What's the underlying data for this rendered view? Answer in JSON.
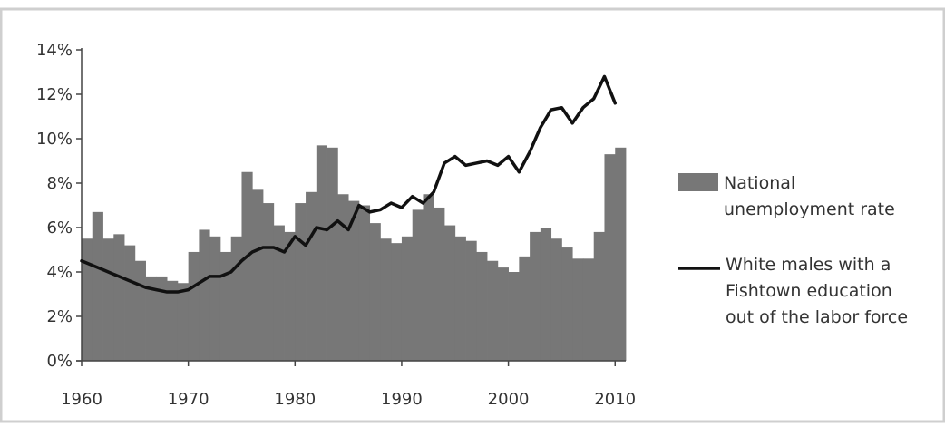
{
  "chart_data": {
    "type": "bar",
    "title": "",
    "xlabel": "",
    "ylabel": "",
    "ylim": [
      0,
      14
    ],
    "xlim": [
      1960,
      2011
    ],
    "grid": false,
    "legend_position": "right",
    "y_ticks": [
      "0%",
      "2%",
      "4%",
      "6%",
      "8%",
      "10%",
      "12%",
      "14%"
    ],
    "x_ticks": [
      "1960",
      "1970",
      "1980",
      "1990",
      "2000",
      "2010"
    ],
    "x": [
      1960,
      1961,
      1962,
      1963,
      1964,
      1965,
      1966,
      1967,
      1968,
      1969,
      1970,
      1971,
      1972,
      1973,
      1974,
      1975,
      1976,
      1977,
      1978,
      1979,
      1980,
      1981,
      1982,
      1983,
      1984,
      1985,
      1986,
      1987,
      1988,
      1989,
      1990,
      1991,
      1992,
      1993,
      1994,
      1995,
      1996,
      1997,
      1998,
      1999,
      2000,
      2001,
      2002,
      2003,
      2004,
      2005,
      2006,
      2007,
      2008,
      2009,
      2010
    ],
    "series": [
      {
        "name": "National unemployment rate",
        "type": "bar",
        "color": "#777777",
        "values": [
          5.5,
          6.7,
          5.5,
          5.7,
          5.2,
          4.5,
          3.8,
          3.8,
          3.6,
          3.5,
          4.9,
          5.9,
          5.6,
          4.9,
          5.6,
          8.5,
          7.7,
          7.1,
          6.1,
          5.8,
          7.1,
          7.6,
          9.7,
          9.6,
          7.5,
          7.2,
          7.0,
          6.2,
          5.5,
          5.3,
          5.6,
          6.8,
          7.5,
          6.9,
          6.1,
          5.6,
          5.4,
          4.9,
          4.5,
          4.2,
          4.0,
          4.7,
          5.8,
          6.0,
          5.5,
          5.1,
          4.6,
          4.6,
          5.8,
          9.3,
          9.6
        ]
      },
      {
        "name": "White males with a Fishtown education out of the labor force",
        "type": "line",
        "color": "#111111",
        "values": [
          4.5,
          4.3,
          4.1,
          3.9,
          3.7,
          3.5,
          3.3,
          3.2,
          3.1,
          3.1,
          3.2,
          3.5,
          3.8,
          3.8,
          4.0,
          4.5,
          4.9,
          5.1,
          5.1,
          4.9,
          5.6,
          5.2,
          6.0,
          5.9,
          6.3,
          5.9,
          7.0,
          6.7,
          6.8,
          7.1,
          6.9,
          7.4,
          7.1,
          7.6,
          8.9,
          9.2,
          8.8,
          8.9,
          9.0,
          8.8,
          9.2,
          8.5,
          9.4,
          10.5,
          11.3,
          11.4,
          10.7,
          11.4,
          11.8,
          12.8,
          11.6
        ]
      }
    ],
    "legend": [
      "National\nunemployment rate",
      "White males with a\nFishtown education\nout of the labor force"
    ]
  }
}
